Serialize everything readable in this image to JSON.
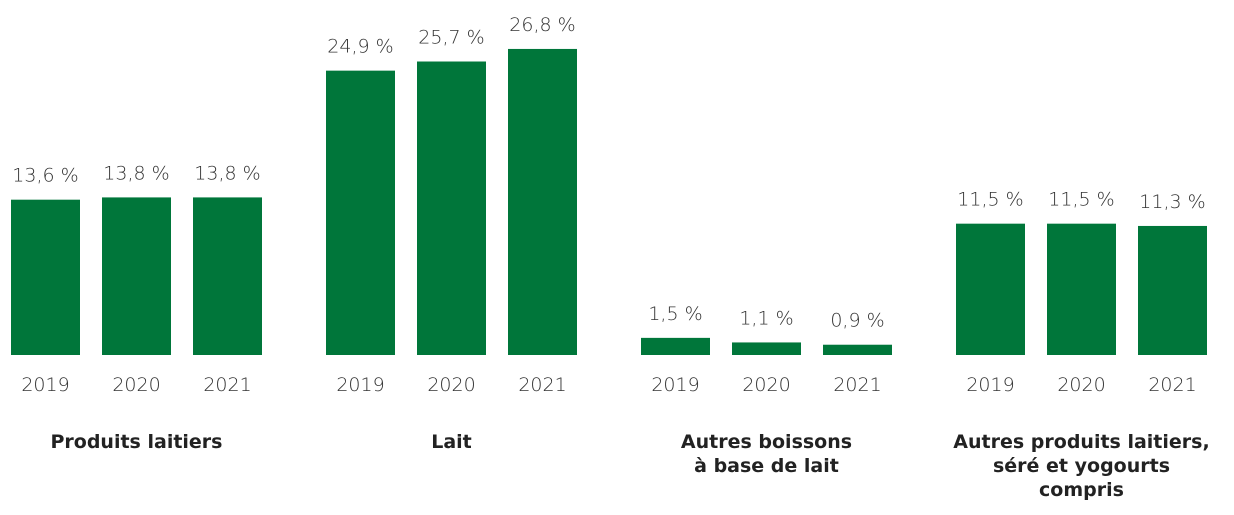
{
  "chart_data": {
    "type": "bar",
    "categories": [
      "Produits laitiers",
      "Lait",
      "Autres boissons\nà base de lait",
      "Autres produits laitiers,\nséré et yogourts\ncompris"
    ],
    "series": [
      {
        "name": "2019",
        "color": "#00763a",
        "values": [
          13.6,
          24.9,
          1.5,
          11.5
        ],
        "value_labels": [
          "13,6 %",
          "24,9 %",
          "1,5 %",
          "11,5 %"
        ]
      },
      {
        "name": "2020",
        "color": "#00763a",
        "values": [
          13.8,
          25.7,
          1.1,
          11.5
        ],
        "value_labels": [
          "13,8 %",
          "25,7 %",
          "1,1 %",
          "11,5 %"
        ]
      },
      {
        "name": "2021",
        "color": "#00763a",
        "values": [
          13.8,
          26.8,
          0.9,
          11.3
        ],
        "value_labels": [
          "13,8 %",
          "26,8 %",
          "0,9 %",
          "11,3 %"
        ]
      }
    ]
  }
}
